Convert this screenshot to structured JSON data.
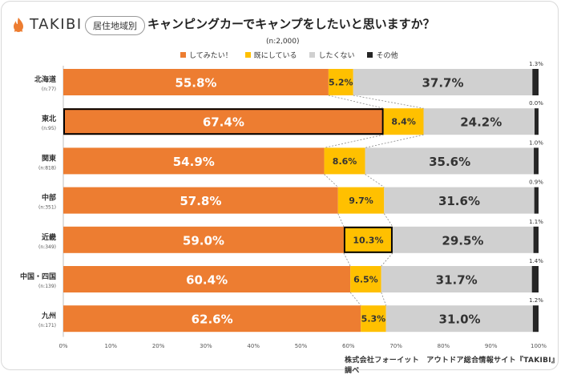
{
  "brand": "TAKIBI",
  "tag": "居住地域別",
  "title": "キャンピングカーでキャンプをしたいと思いますか？",
  "n_total": "(n:2,000)",
  "credit": "株式会社フォーイット　アウトドア総合情報サイト『TAKIBI』調べ",
  "colors": {
    "want": "#ED7D31",
    "already": "#FFC000",
    "no": "#D0D0D0",
    "other": "#262626"
  },
  "chart_data": {
    "type": "bar",
    "orientation": "horizontal",
    "stacked": true,
    "percent_axis": true,
    "xlim": [
      0,
      100
    ],
    "x_ticks": [
      "0%",
      "10%",
      "20%",
      "30%",
      "40%",
      "50%",
      "60%",
      "70%",
      "80%",
      "90%",
      "100%"
    ],
    "categories": [
      "北海道",
      "東北",
      "関東",
      "中部",
      "近畿",
      "中国・四国",
      "九州"
    ],
    "category_n": [
      "(n:77)",
      "(n:95)",
      "(n:818)",
      "(n:351)",
      "(n:349)",
      "(n:139)",
      "(n:171)"
    ],
    "series": [
      {
        "name": "してみたい！",
        "values": [
          55.8,
          67.4,
          54.9,
          57.8,
          59.0,
          60.4,
          62.6
        ]
      },
      {
        "name": "既にしている",
        "values": [
          5.2,
          8.4,
          8.6,
          9.7,
          10.3,
          6.5,
          5.3
        ]
      },
      {
        "name": "したくない",
        "values": [
          37.7,
          24.2,
          35.6,
          31.6,
          29.5,
          31.7,
          31.0
        ]
      },
      {
        "name": "その他",
        "values": [
          1.3,
          0.0,
          1.0,
          0.9,
          1.1,
          1.4,
          1.2
        ]
      }
    ],
    "highlighted": [
      {
        "category": "東北",
        "series": "してみたい！"
      },
      {
        "category": "近畿",
        "series": "既にしている"
      }
    ]
  }
}
